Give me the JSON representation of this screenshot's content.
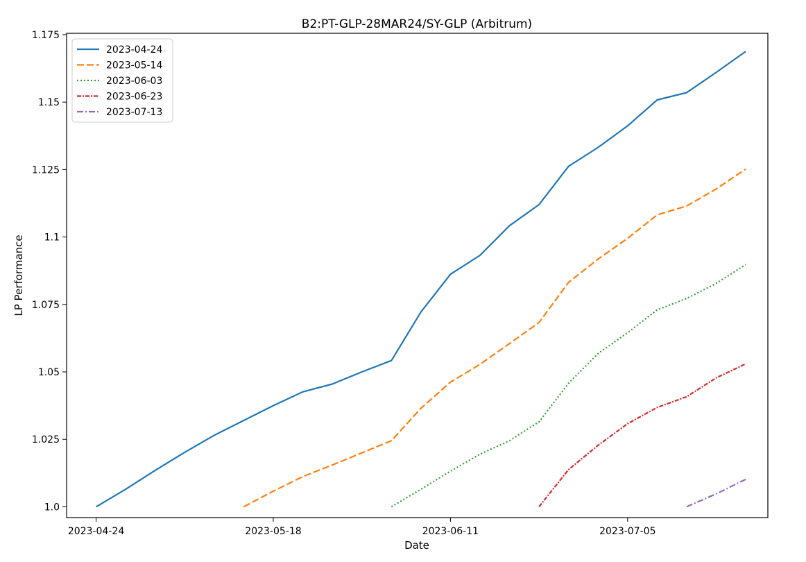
{
  "chart_data": {
    "type": "line",
    "title": "B2:PT-GLP-28MAR24/SY-GLP (Arbitrum)",
    "xlabel": "Date",
    "ylabel": "LP Performance",
    "x_ticks": [
      "2023-04-24",
      "2023-05-18",
      "2023-06-11",
      "2023-07-05"
    ],
    "y_ticks": [
      "1.0",
      "1.025",
      "1.05",
      "1.075",
      "1.1",
      "1.125",
      "1.15",
      "1.175"
    ],
    "xlim": [
      "2023-04-20",
      "2023-07-24"
    ],
    "ylim": [
      0.996,
      1.1755
    ],
    "grid": false,
    "legend_position": "upper left",
    "series": [
      {
        "name": "2023-04-24",
        "color": "#1f77b4",
        "dash": "solid",
        "points": [
          [
            "2023-04-24",
            1.0
          ],
          [
            "2023-04-28",
            1.0065
          ],
          [
            "2023-05-02",
            1.0135
          ],
          [
            "2023-05-06",
            1.0202
          ],
          [
            "2023-05-10",
            1.0265
          ],
          [
            "2023-05-14",
            1.032
          ],
          [
            "2023-05-18",
            1.0375
          ],
          [
            "2023-05-22",
            1.0426
          ],
          [
            "2023-05-26",
            1.0455
          ],
          [
            "2023-05-30",
            1.05
          ],
          [
            "2023-06-03",
            1.0542
          ],
          [
            "2023-06-07",
            1.0722
          ],
          [
            "2023-06-11",
            1.0862
          ],
          [
            "2023-06-15",
            1.0932
          ],
          [
            "2023-06-19",
            1.1042
          ],
          [
            "2023-06-23",
            1.112
          ],
          [
            "2023-06-27",
            1.1262
          ],
          [
            "2023-07-01",
            1.1332
          ],
          [
            "2023-07-05",
            1.1412
          ],
          [
            "2023-07-09",
            1.1508
          ],
          [
            "2023-07-13",
            1.1535
          ],
          [
            "2023-07-17",
            1.161
          ],
          [
            "2023-07-21",
            1.1688
          ]
        ]
      },
      {
        "name": "2023-05-14",
        "color": "#ff7f0e",
        "dash": "dashed",
        "points": [
          [
            "2023-05-14",
            1.0
          ],
          [
            "2023-05-18",
            1.0058
          ],
          [
            "2023-05-22",
            1.0112
          ],
          [
            "2023-05-26",
            1.0155
          ],
          [
            "2023-05-30",
            1.02
          ],
          [
            "2023-06-03",
            1.0245
          ],
          [
            "2023-06-07",
            1.0365
          ],
          [
            "2023-06-11",
            1.0462
          ],
          [
            "2023-06-15",
            1.0528
          ],
          [
            "2023-06-19",
            1.0605
          ],
          [
            "2023-06-23",
            1.0683
          ],
          [
            "2023-06-27",
            1.0832
          ],
          [
            "2023-07-01",
            1.0918
          ],
          [
            "2023-07-05",
            1.0995
          ],
          [
            "2023-07-09",
            1.1082
          ],
          [
            "2023-07-13",
            1.1115
          ],
          [
            "2023-07-17",
            1.1178
          ],
          [
            "2023-07-21",
            1.1252
          ]
        ]
      },
      {
        "name": "2023-06-03",
        "color": "#2ca02c",
        "dash": "dotted",
        "points": [
          [
            "2023-06-03",
            1.0
          ],
          [
            "2023-06-07",
            1.0065
          ],
          [
            "2023-06-11",
            1.0132
          ],
          [
            "2023-06-15",
            1.0195
          ],
          [
            "2023-06-19",
            1.0245
          ],
          [
            "2023-06-23",
            1.0315
          ],
          [
            "2023-06-27",
            1.0458
          ],
          [
            "2023-07-01",
            1.0568
          ],
          [
            "2023-07-05",
            1.0645
          ],
          [
            "2023-07-09",
            1.073
          ],
          [
            "2023-07-13",
            1.0772
          ],
          [
            "2023-07-17",
            1.0828
          ],
          [
            "2023-07-21",
            1.0898
          ]
        ]
      },
      {
        "name": "2023-06-23",
        "color": "#d62728",
        "dash": "dashdot-tight",
        "points": [
          [
            "2023-06-23",
            1.0
          ],
          [
            "2023-06-27",
            1.0138
          ],
          [
            "2023-07-01",
            1.0228
          ],
          [
            "2023-07-05",
            1.0308
          ],
          [
            "2023-07-09",
            1.0368
          ],
          [
            "2023-07-13",
            1.0408
          ],
          [
            "2023-07-17",
            1.0478
          ],
          [
            "2023-07-21",
            1.053
          ]
        ]
      },
      {
        "name": "2023-07-13",
        "color": "#9467bd",
        "dash": "dashdot",
        "points": [
          [
            "2023-07-13",
            1.0
          ],
          [
            "2023-07-17",
            1.0048
          ],
          [
            "2023-07-21",
            1.0102
          ]
        ]
      }
    ]
  }
}
